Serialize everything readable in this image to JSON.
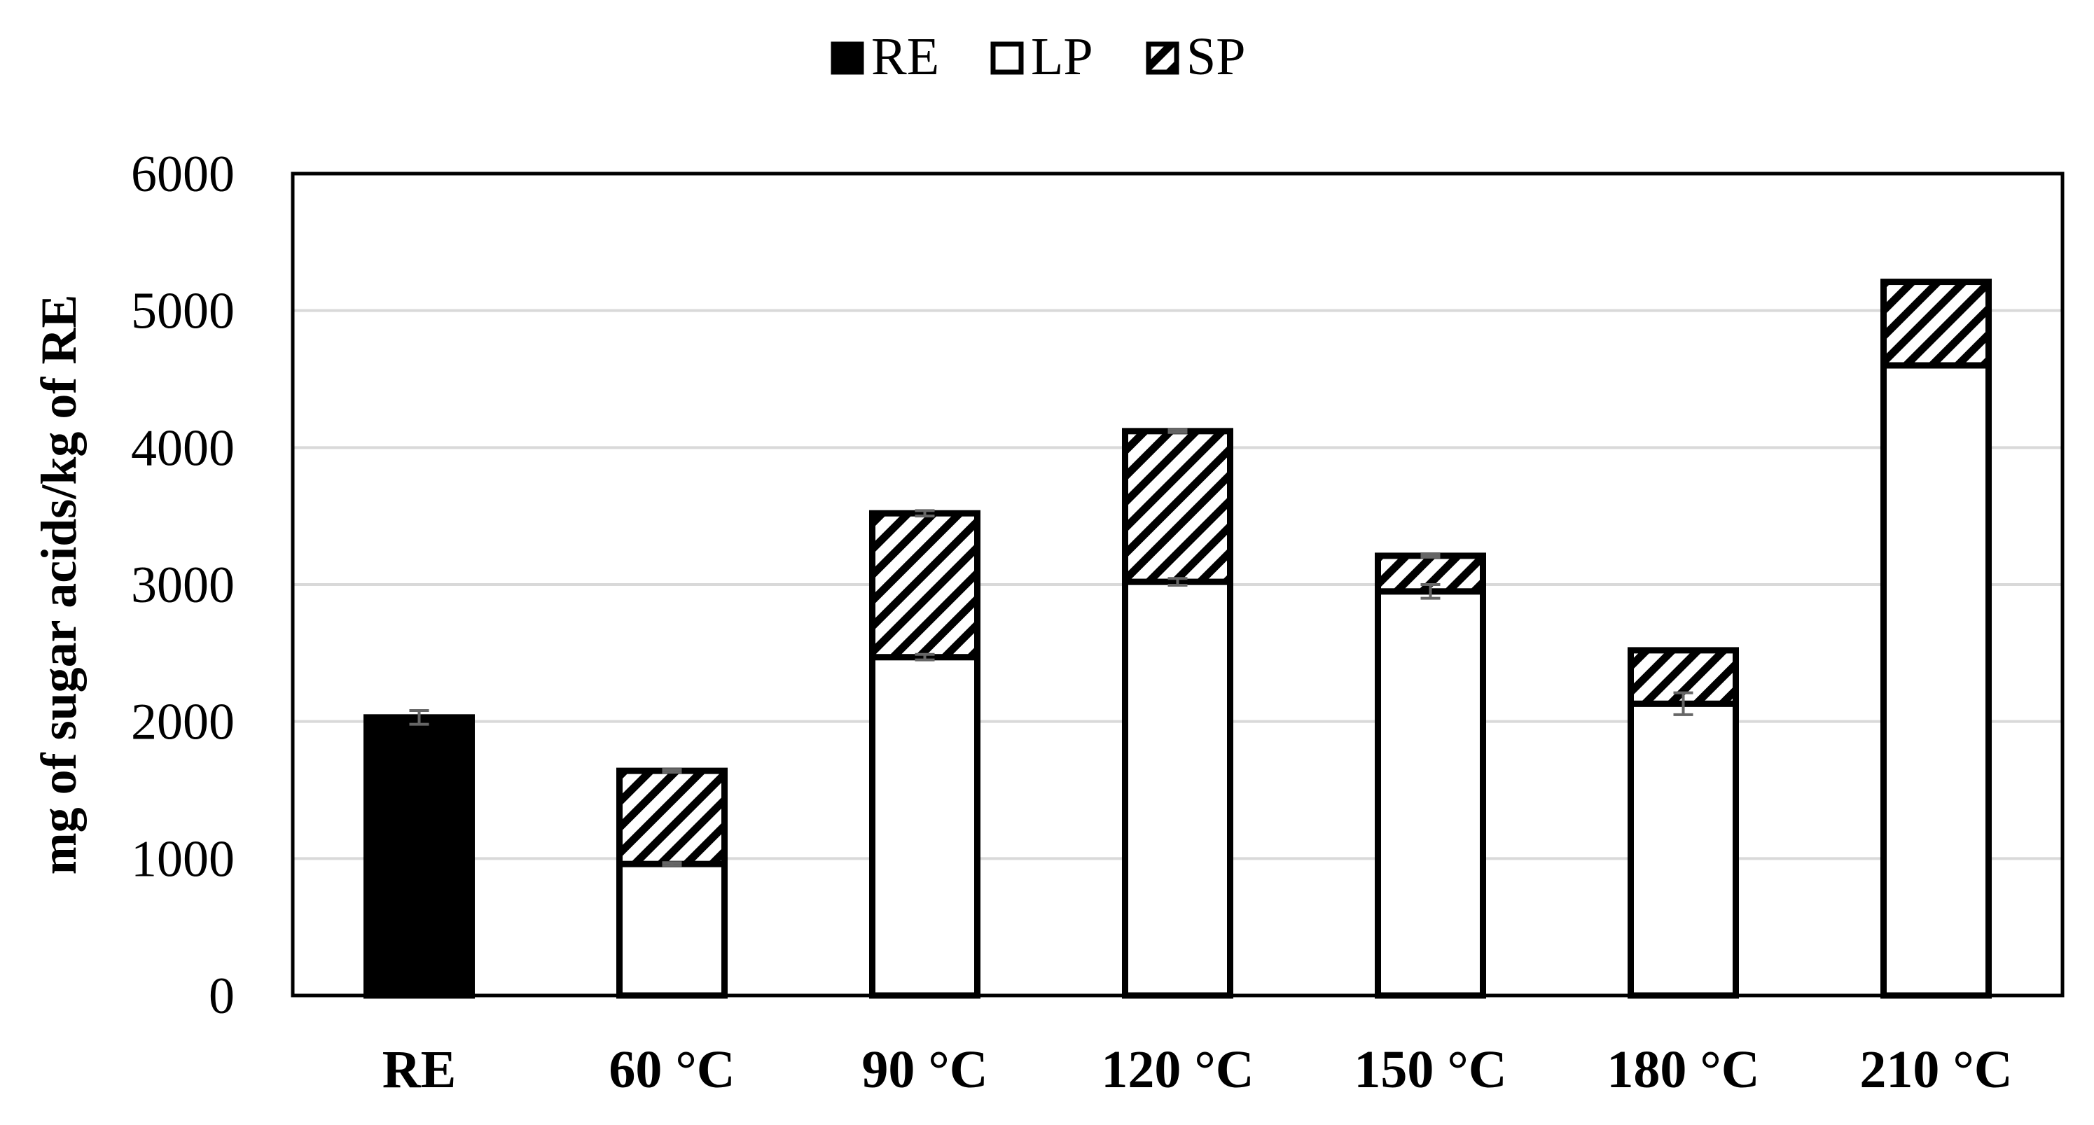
{
  "chart_data": {
    "type": "bar",
    "stacked": true,
    "title": "",
    "xlabel": "",
    "ylabel": "mg of sugar acids/kg of RE",
    "ylim": [
      0,
      6000
    ],
    "yticks": [
      0,
      1000,
      2000,
      3000,
      4000,
      5000,
      6000
    ],
    "grid": true,
    "legend_position": "top-center",
    "categories": [
      "RE",
      "60 °C",
      "90 °C",
      "120 °C",
      "150 °C",
      "180 °C",
      "210 °C"
    ],
    "series": [
      {
        "name": "RE",
        "style": "solid-black",
        "values": [
          2030,
          null,
          null,
          null,
          null,
          null,
          null
        ],
        "errors": [
          50,
          null,
          null,
          null,
          null,
          null,
          null
        ]
      },
      {
        "name": "LP",
        "style": "white",
        "values": [
          null,
          960,
          2470,
          3020,
          2950,
          2130,
          4600
        ],
        "errors": [
          null,
          10,
          20,
          25,
          50,
          80,
          null
        ]
      },
      {
        "name": "SP",
        "style": "hatched",
        "values": [
          null,
          680,
          1050,
          1100,
          260,
          390,
          610
        ],
        "errors": [
          null,
          10,
          20,
          10,
          10,
          null,
          null
        ]
      }
    ],
    "colors": {
      "RE": "#000000",
      "LP": "#ffffff",
      "SP_hatch": "#000000",
      "error_bar": "#666666",
      "grid": "#d9d9d9"
    }
  }
}
